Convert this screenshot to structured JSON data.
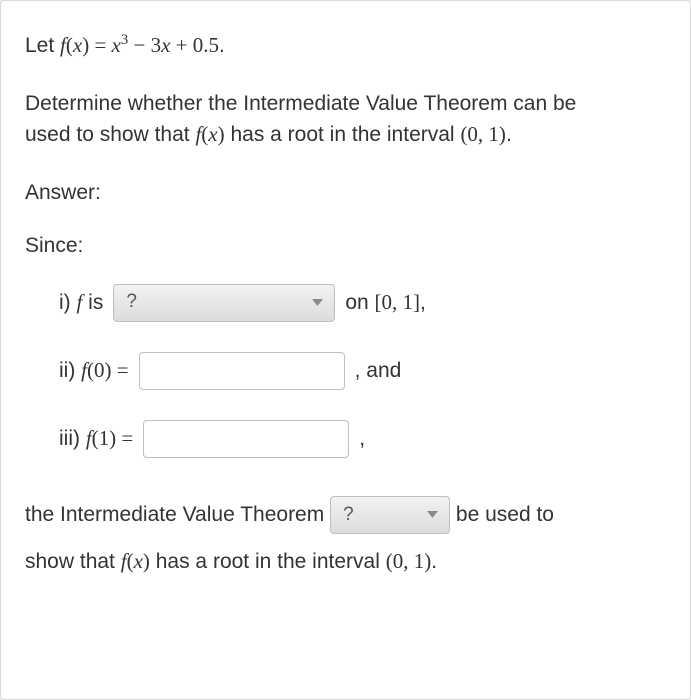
{
  "problem": {
    "let_prefix": "Let ",
    "fdef_lhs_html": "<span class='math'>f<span class='upright'>(</span>x<span class='upright'>)</span> <span class='upright'>=</span> x<span class='sup'>3</span> <span class='upright'>−</span> <span class='upright'>3</span>x <span class='upright'>+</span> <span class='upright'>0.5</span></span>.",
    "prompt_line1": "Determine whether the Intermediate Value Theorem can be",
    "prompt_line2_prefix": "used to show that ",
    "fx_html": "<span class='math'>f<span class='upright'>(</span>x<span class='upright'>)</span></span>",
    "prompt_line2_suffix": " has a root in the interval ",
    "interval_open": "<span class='math'><span class='upright'>(0, 1)</span></span>."
  },
  "labels": {
    "answer": "Answer:",
    "since": "Since:"
  },
  "parts": {
    "i_prefix_html": "i) <span class='math'>f</span> is",
    "i_suffix_html": "on <span class='math'><span class='upright'>[0, 1]</span></span>,",
    "ii_prefix_html": "ii) <span class='math'>f<span class='upright'>(0)</span> <span class='upright'>=</span></span>",
    "ii_suffix": ", and",
    "iii_prefix_html": "iii) <span class='math'>f<span class='upright'>(1)</span> <span class='upright'>=</span></span>",
    "iii_suffix": ","
  },
  "selects": {
    "placeholder": "?",
    "i_value": "?",
    "conclusion_value": "?"
  },
  "inputs": {
    "f0_value": "",
    "f1_value": ""
  },
  "conclusion": {
    "prefix": "the Intermediate Value Theorem  ",
    "mid": "  be used to",
    "line2_prefix": "show that ",
    "line2_mid": " has a root in the interval ",
    "interval_html": "<span class='math'><span class='upright'>(0, 1)</span></span>."
  },
  "colors": {
    "card_bg": "#ffffff",
    "card_border": "#d9d9d9",
    "text": "#333333",
    "select_border": "#bfbfbf",
    "select_grad_top": "#f2f2f2",
    "select_grad_bottom": "#dcdcdc",
    "input_border": "#bfbfbf",
    "tri_fill": "#8a8a8a"
  }
}
